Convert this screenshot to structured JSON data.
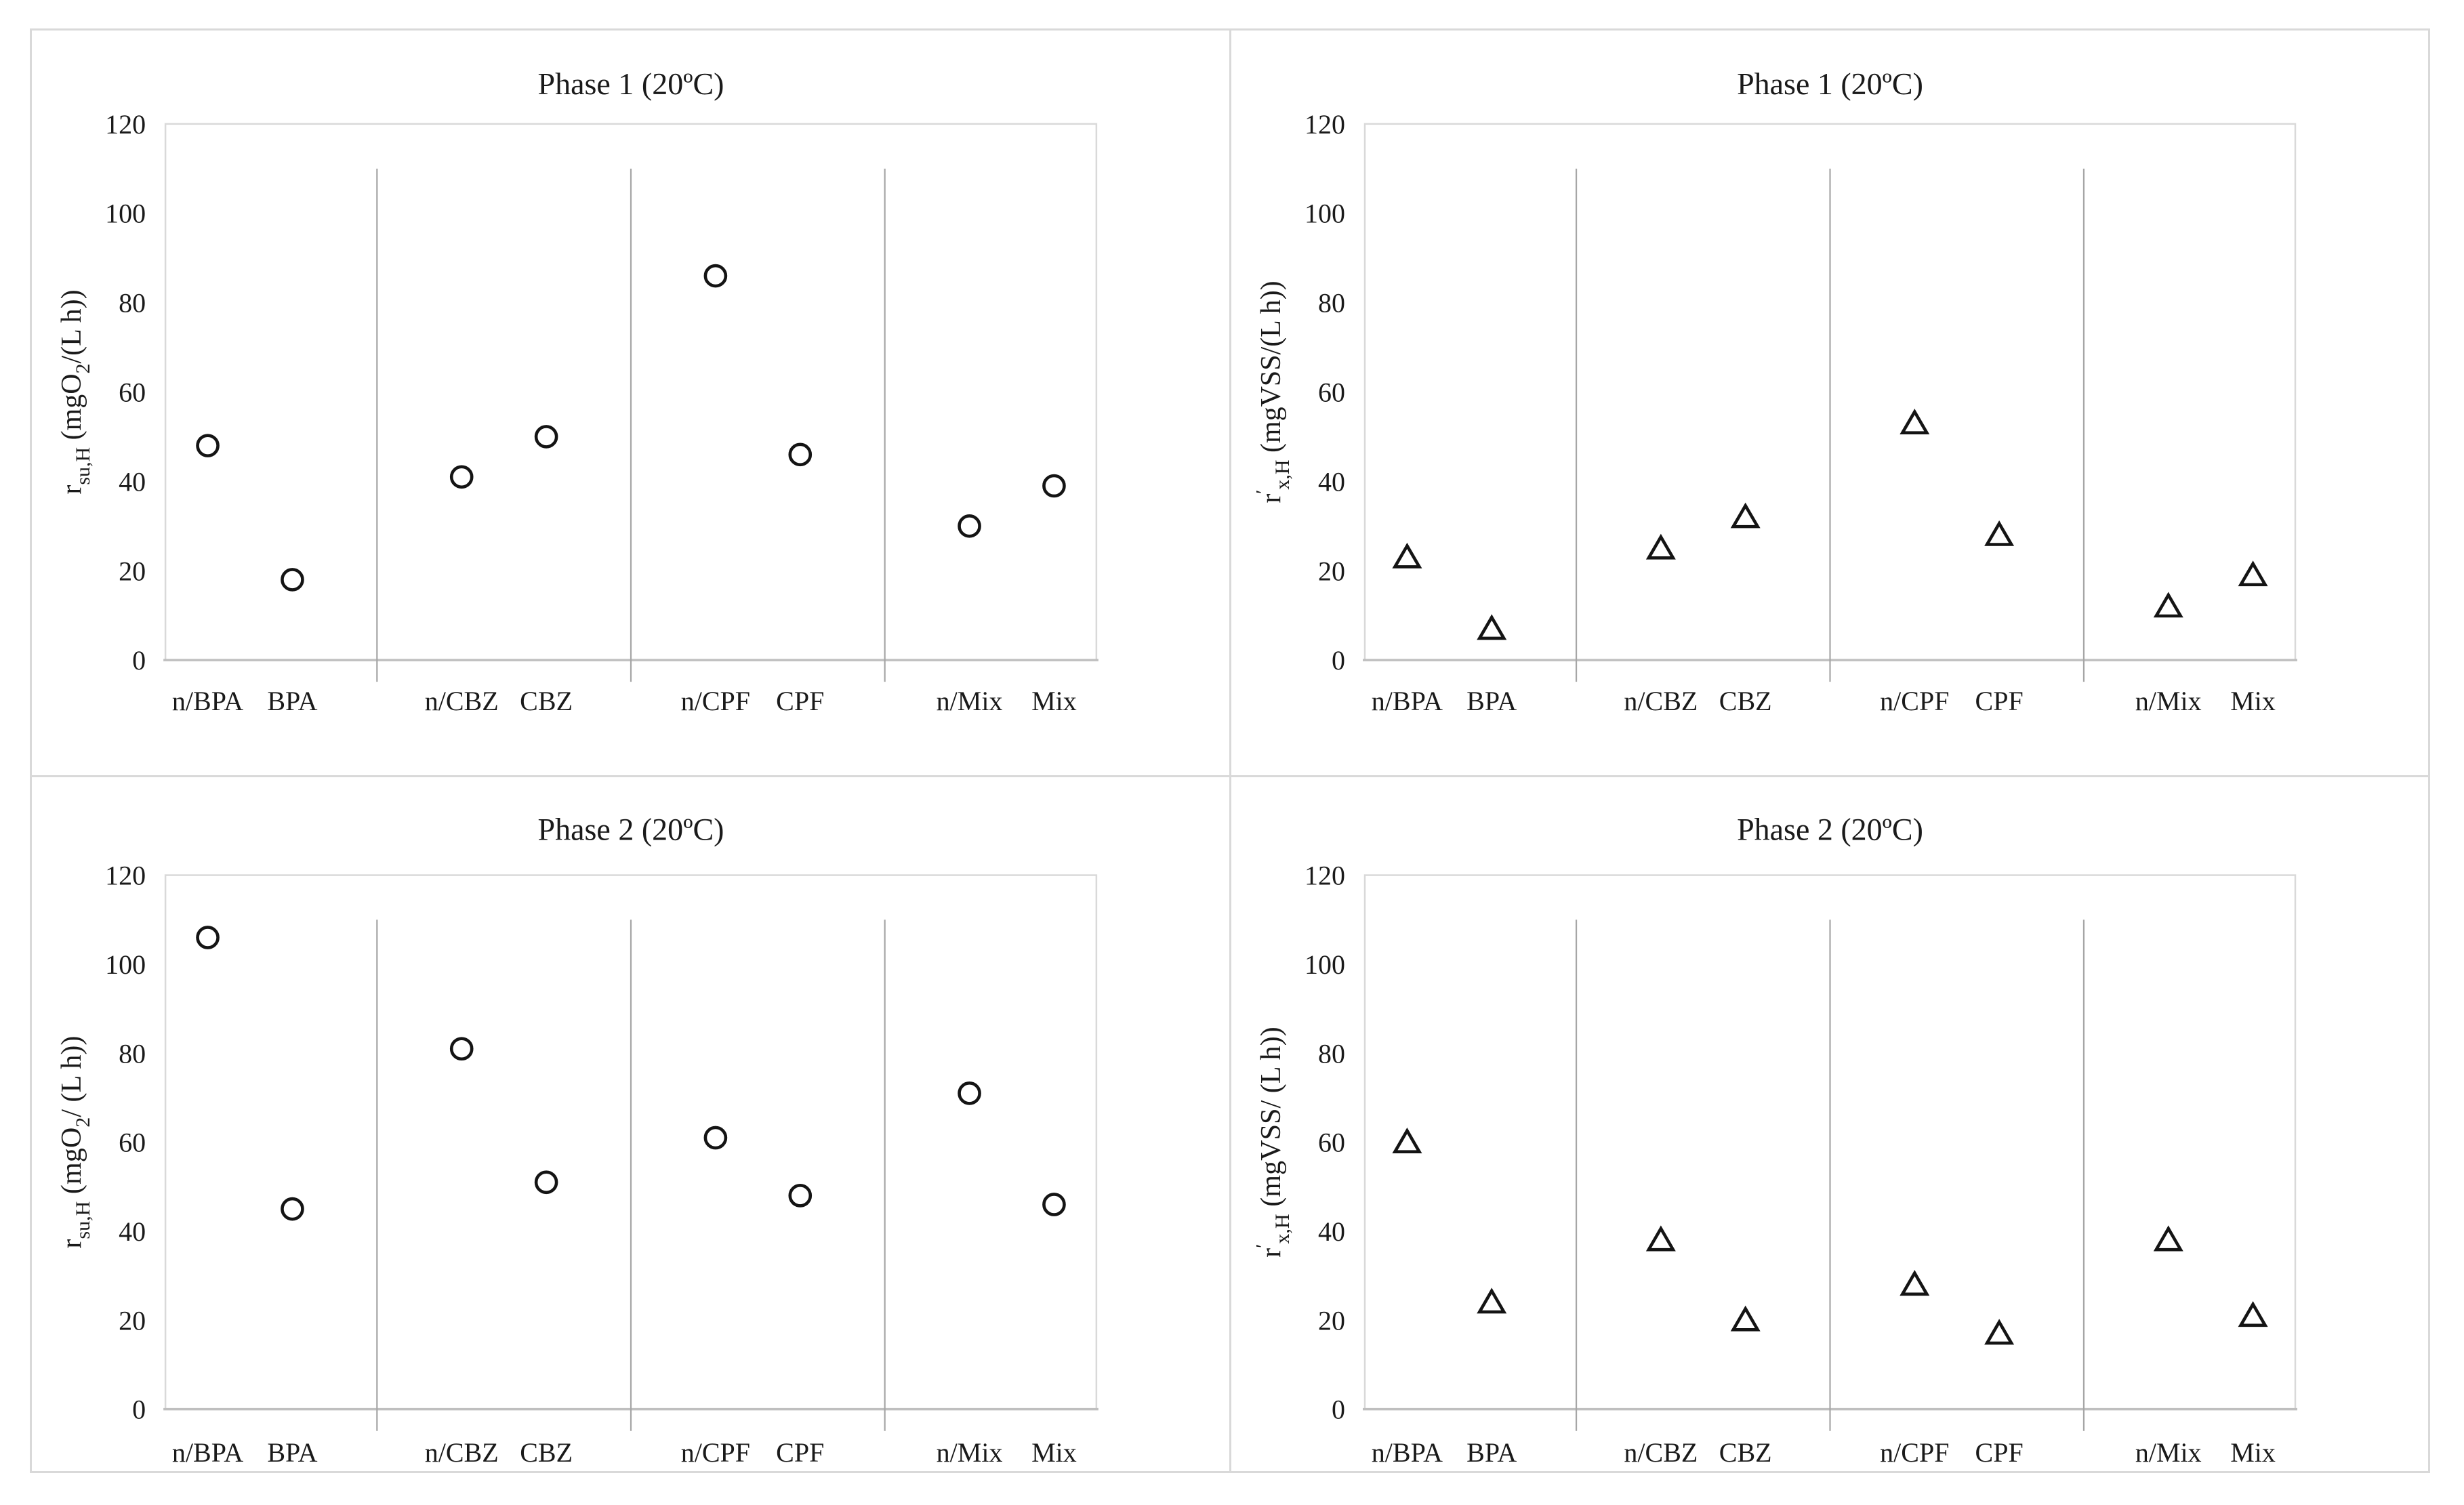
{
  "figure": {
    "style": {
      "text_color": "#1a1a1a",
      "frame_color": "#d9d9d9",
      "axis_line_color": "#bfbfbf",
      "separator_color": "#a6a6a6",
      "marker_stroke": "#141414",
      "marker_fill": "#ffffff",
      "background": "#ffffff"
    }
  },
  "chart_data": [
    {
      "type": "scatter",
      "panel": "top-left",
      "title": "Phase 1 (20ºC)",
      "marker": "circle",
      "ylabel_plain": "r su,H (mgO2/(L h))",
      "ylabel_segments": [
        {
          "text": "r"
        },
        {
          "text": "su,H",
          "style": "sub"
        },
        {
          "text": " (mgO"
        },
        {
          "text": "2",
          "style": "sub"
        },
        {
          "text": "/(L h))"
        }
      ],
      "xlabel": "",
      "categories": [
        "n/BPA",
        "BPA",
        "n/CBZ",
        "CBZ",
        "n/CPF",
        "CPF",
        "n/Mix",
        "Mix"
      ],
      "values": [
        48,
        18,
        41,
        50,
        86,
        46,
        30,
        39
      ],
      "ylim": [
        0,
        120
      ],
      "ytick_step": 20,
      "grid": false,
      "legend": "none",
      "category_slots": [
        0,
        1,
        3,
        4,
        6,
        7,
        9,
        10
      ],
      "separator_slots": [
        2,
        5,
        8
      ],
      "total_slots": 11,
      "separator_top_value": 110,
      "separator_below_axis": true
    },
    {
      "type": "scatter",
      "panel": "top-right",
      "title": "Phase 1 (20ºC)",
      "marker": "triangle",
      "ylabel_plain": "r'x,H (mgVSS/(L h))",
      "ylabel_segments": [
        {
          "text": "r"
        },
        {
          "text": "′",
          "style": "sup"
        },
        {
          "text": "x,H",
          "style": "sub"
        },
        {
          "text": " (mgVSS/(L h))"
        }
      ],
      "xlabel": "",
      "categories": [
        "n/BPA",
        "BPA",
        "n/CBZ",
        "CBZ",
        "n/CPF",
        "CPF",
        "n/Mix",
        "Mix"
      ],
      "values": [
        23,
        7,
        25,
        32,
        53,
        28,
        12,
        19
      ],
      "ylim": [
        0,
        120
      ],
      "ytick_step": 20,
      "grid": false,
      "legend": "none",
      "category_slots": [
        0,
        1,
        3,
        4,
        6,
        7,
        9,
        10
      ],
      "separator_slots": [
        2,
        5,
        8
      ],
      "total_slots": 11,
      "separator_top_value": 110,
      "separator_below_axis": true
    },
    {
      "type": "scatter",
      "panel": "bottom-left",
      "title": "Phase 2 (20ºC)",
      "marker": "circle",
      "ylabel_plain": "r su,H (mgO2/ (L h))",
      "ylabel_segments": [
        {
          "text": "r"
        },
        {
          "text": "su,H",
          "style": "sub"
        },
        {
          "text": " (mgO"
        },
        {
          "text": "2",
          "style": "sub"
        },
        {
          "text": "/ (L h))"
        }
      ],
      "xlabel": "",
      "categories": [
        "n/BPA",
        "BPA",
        "n/CBZ",
        "CBZ",
        "n/CPF",
        "CPF",
        "n/Mix",
        "Mix"
      ],
      "values": [
        106,
        45,
        81,
        51,
        61,
        48,
        71,
        46
      ],
      "ylim": [
        0,
        120
      ],
      "ytick_step": 20,
      "grid": false,
      "legend": "none",
      "category_slots": [
        0,
        1,
        3,
        4,
        6,
        7,
        9,
        10
      ],
      "separator_slots": [
        2,
        5,
        8
      ],
      "total_slots": 11,
      "separator_top_value": 110,
      "separator_below_axis": true
    },
    {
      "type": "scatter",
      "panel": "bottom-right",
      "title": "Phase 2 (20ºC)",
      "marker": "triangle",
      "ylabel_plain": "r'x,H (mgVSS/ (L h))",
      "ylabel_segments": [
        {
          "text": "r"
        },
        {
          "text": "′",
          "style": "sup"
        },
        {
          "text": "x,H",
          "style": "sub"
        },
        {
          "text": " (mgVSS/ (L h))"
        }
      ],
      "xlabel": "",
      "categories": [
        "n/BPA",
        "BPA",
        "n/CBZ",
        "CBZ",
        "n/CPF",
        "CPF",
        "n/Mix",
        "Mix"
      ],
      "values": [
        60,
        24,
        38,
        20,
        28,
        17,
        38,
        21
      ],
      "ylim": [
        0,
        120
      ],
      "ytick_step": 20,
      "grid": false,
      "legend": "none",
      "category_slots": [
        0,
        1,
        3,
        4,
        6,
        7,
        9,
        10
      ],
      "separator_slots": [
        2,
        5,
        8
      ],
      "total_slots": 11,
      "separator_top_value": 110,
      "separator_below_axis": true
    }
  ]
}
